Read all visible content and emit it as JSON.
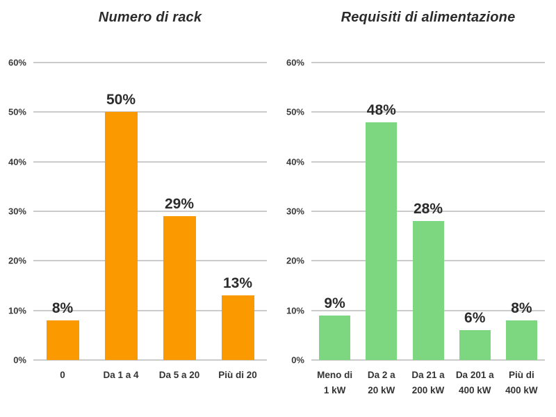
{
  "page": {
    "background": "#ffffff"
  },
  "chart_data": [
    {
      "type": "bar",
      "title": "Numero di rack",
      "categories": [
        "0",
        "Da 1 a 4",
        "Da 5 a 20",
        "Più di 20"
      ],
      "values": [
        8,
        50,
        29,
        13
      ],
      "data_labels": [
        "8%",
        "50%",
        "29%",
        "13%"
      ],
      "bar_color": "#FA9A00",
      "ylim": [
        0,
        60
      ],
      "ytick_step": 10,
      "yticks": [
        "0%",
        "10%",
        "20%",
        "30%",
        "40%",
        "50%",
        "60%"
      ],
      "grid": true,
      "legend": "none",
      "xlabel": "",
      "ylabel": ""
    },
    {
      "type": "bar",
      "title": "Requisiti di alimentazione",
      "categories": [
        "Meno di\n1 kW",
        "Da 2 a\n20 kW",
        "Da 21 a\n200 kW",
        "Da 201 a\n400 kW",
        "Più di\n400 kW"
      ],
      "values": [
        9,
        48,
        28,
        6,
        8
      ],
      "data_labels": [
        "9%",
        "48%",
        "28%",
        "6%",
        "8%"
      ],
      "bar_color": "#7DD781",
      "ylim": [
        0,
        60
      ],
      "ytick_step": 10,
      "yticks": [
        "0%",
        "10%",
        "20%",
        "30%",
        "40%",
        "50%",
        "60%"
      ],
      "grid": true,
      "legend": "none",
      "xlabel": "",
      "ylabel": ""
    }
  ],
  "colors": {
    "gridline": "#CBCBCB",
    "axis_text": "#3A3A3A",
    "label_text": "#2B2B2B",
    "orange_series": "#FA9A00",
    "green_series": "#7DD781"
  }
}
